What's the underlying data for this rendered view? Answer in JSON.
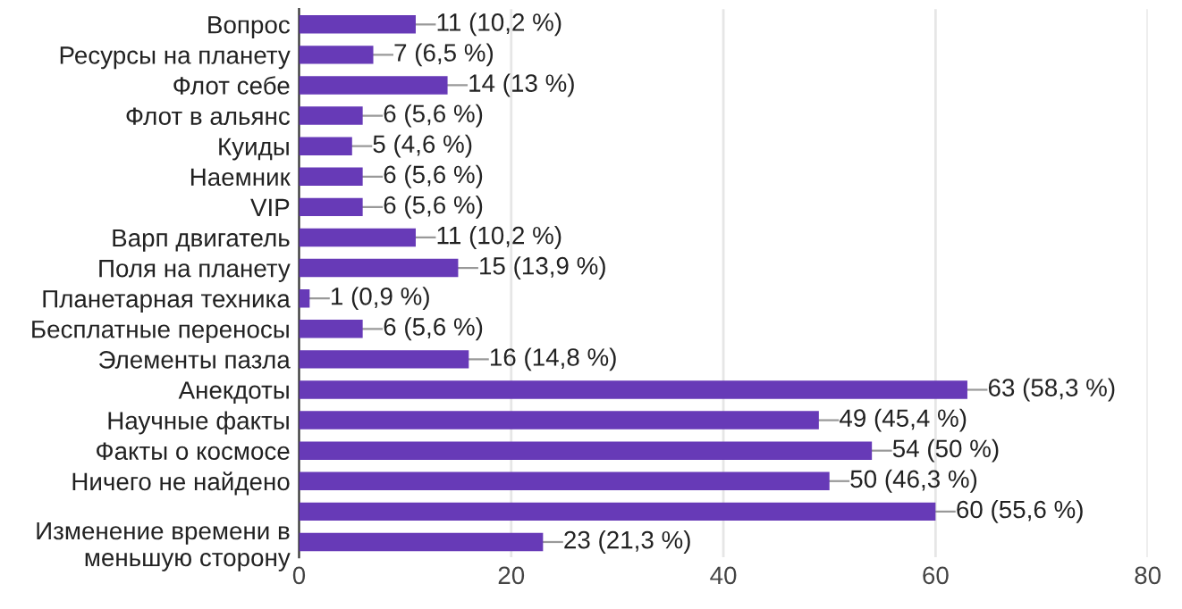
{
  "chart_data": {
    "type": "bar",
    "orientation": "horizontal",
    "categories": [
      "Вопрос",
      "Ресурсы на планету",
      "Флот себе",
      "Флот в альянс",
      "Куиды",
      "Наемник",
      "VIP",
      "Варп двигатель",
      "Поля на планету",
      "Планетарная техника",
      "Бесплатные переносы",
      "Элементы пазла",
      "Анекдоты",
      "Научные факты",
      "Факты о космосе",
      "Ничего не найдено",
      null,
      "Изменение времени в\nменьшую сторону"
    ],
    "values": [
      11,
      7,
      14,
      6,
      5,
      6,
      6,
      11,
      15,
      1,
      6,
      16,
      63,
      49,
      54,
      50,
      60,
      23
    ],
    "value_labels": [
      "11 (10,2 %)",
      "7 (6,5 %)",
      "14 (13 %)",
      "6 (5,6 %)",
      "5 (4,6 %)",
      "6 (5,6 %)",
      "6 (5,6 %)",
      "11 (10,2 %)",
      "15 (13,9 %)",
      "1 (0,9 %)",
      "6 (5,6 %)",
      "16 (14,8 %)",
      "63 (58,3 %)",
      "49 (45,4 %)",
      "54 (50 %)",
      "50 (46,3 %)",
      "60 (55,6 %)",
      "23 (21,3 %)"
    ],
    "color": "#673ab7",
    "xlim": [
      0,
      80
    ],
    "xticks": [
      0,
      20,
      40,
      60,
      80
    ],
    "grid": "x",
    "legend": false
  }
}
